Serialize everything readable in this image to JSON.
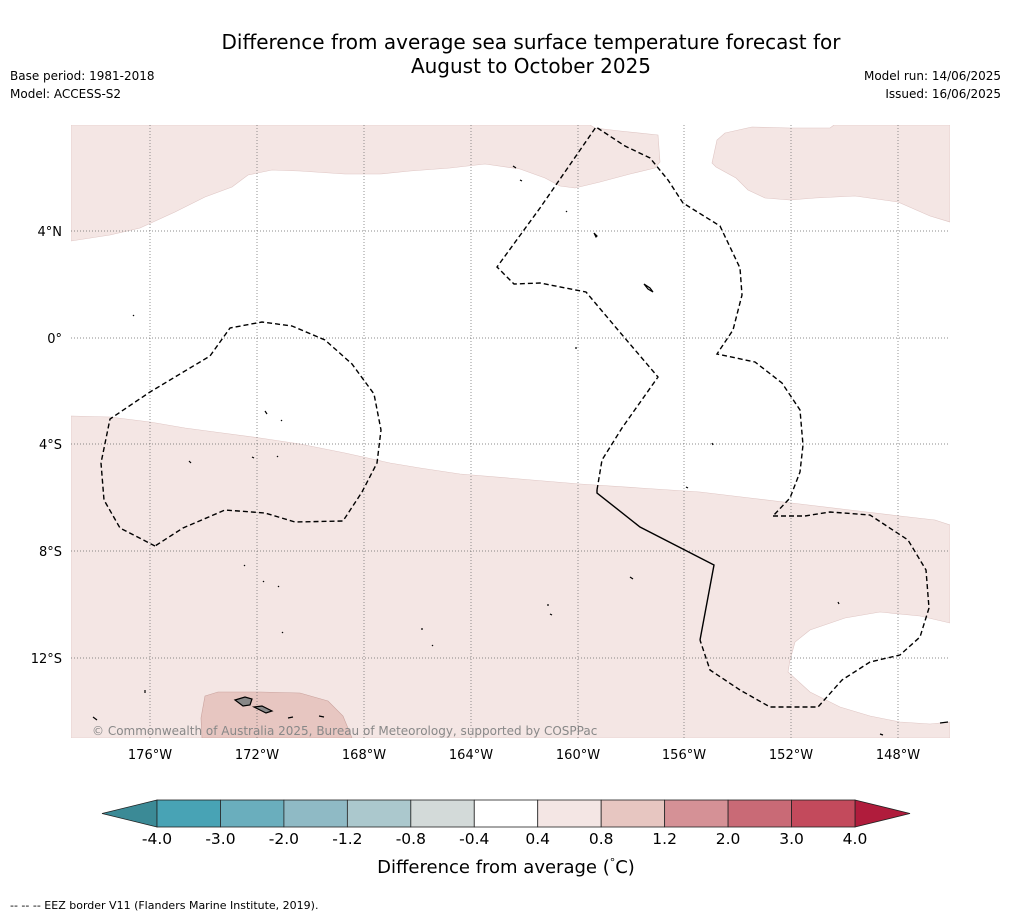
{
  "title_line1": "Difference from average sea surface temperature forecast for",
  "title_line2": "August to October 2025",
  "base_period": "Base period: 1981-2018",
  "model": "Model: ACCESS-S2",
  "model_run": "Model run: 14/06/2025",
  "issued": "Issued: 16/06/2025",
  "copyright": "© Commonwealth of Australia 2025, Bureau of Meteorology, supported by COSPPac",
  "footer_note": "--  --  -- EEZ border V11 (Flanders Marine Institute, 2019).",
  "map": {
    "lat_labels": [
      "4°N",
      "0°",
      "4°S",
      "8°S",
      "12°S"
    ],
    "lon_labels": [
      "176°W",
      "172°W",
      "168°W",
      "164°W",
      "160°W",
      "156°W",
      "152°W",
      "148°W"
    ]
  },
  "colorbar": {
    "label": "Difference from average (",
    "unit": "C)",
    "degree_mark": "°",
    "ticks": [
      "-4.0",
      "-3.0",
      "-2.0",
      "-1.2",
      "-0.8",
      "-0.4",
      "0.4",
      "0.8",
      "1.2",
      "2.0",
      "3.0",
      "4.0"
    ],
    "colors": [
      "#48a3b5",
      "#6aaebd",
      "#8fbac5",
      "#abc8cd",
      "#d3dad9",
      "#ffffff",
      "#f4e6e4",
      "#e7c6c1",
      "#d59196",
      "#c96a76",
      "#c34a5c"
    ],
    "under_color": "#3b8a96",
    "over_color": "#b01c3c"
  },
  "legend_colors": {
    "warm_light": "#f4e6e4",
    "warm_medium": "#e7c6c1"
  }
}
